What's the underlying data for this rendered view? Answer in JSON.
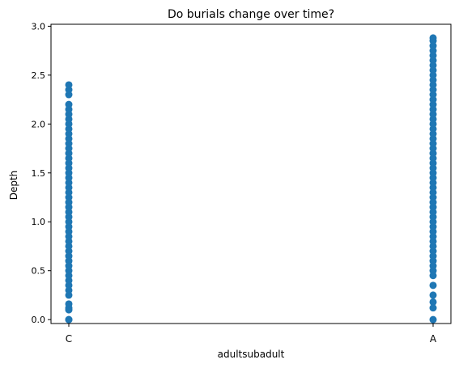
{
  "chart_data": {
    "type": "scatter",
    "title": "Do burials change over time?",
    "xlabel": "adultsubadult",
    "ylabel": "Depth",
    "categories": [
      "C",
      "A"
    ],
    "ylim": [
      -0.04,
      3.02
    ],
    "yticks": [
      "0.0",
      "0.5",
      "1.0",
      "1.5",
      "2.0",
      "2.5",
      "3.0"
    ],
    "grid": false,
    "legend": "none",
    "colors": {
      "marker": "#1f77b4",
      "axis": "#000000",
      "background": "#ffffff"
    },
    "series": [
      {
        "category": "C",
        "values": [
          0.0,
          0.0,
          0.1,
          0.12,
          0.16,
          0.25,
          0.3,
          0.35,
          0.4,
          0.45,
          0.5,
          0.55,
          0.6,
          0.65,
          0.7,
          0.75,
          0.8,
          0.85,
          0.9,
          0.95,
          1.0,
          1.05,
          1.1,
          1.15,
          1.2,
          1.25,
          1.3,
          1.35,
          1.4,
          1.45,
          1.5,
          1.55,
          1.6,
          1.65,
          1.7,
          1.75,
          1.8,
          1.85,
          1.9,
          1.95,
          2.0,
          2.05,
          2.1,
          2.15,
          2.2,
          2.3,
          2.35,
          2.4
        ]
      },
      {
        "category": "A",
        "values": [
          0.0,
          0.12,
          0.18,
          0.25,
          0.35,
          0.45,
          0.5,
          0.55,
          0.6,
          0.65,
          0.7,
          0.75,
          0.8,
          0.85,
          0.9,
          0.95,
          1.0,
          1.05,
          1.1,
          1.15,
          1.2,
          1.25,
          1.3,
          1.35,
          1.4,
          1.45,
          1.5,
          1.55,
          1.6,
          1.65,
          1.7,
          1.75,
          1.8,
          1.85,
          1.9,
          1.95,
          2.0,
          2.05,
          2.1,
          2.15,
          2.2,
          2.25,
          2.3,
          2.35,
          2.4,
          2.45,
          2.5,
          2.55,
          2.6,
          2.65,
          2.7,
          2.75,
          2.8,
          2.85,
          2.88
        ]
      }
    ]
  }
}
